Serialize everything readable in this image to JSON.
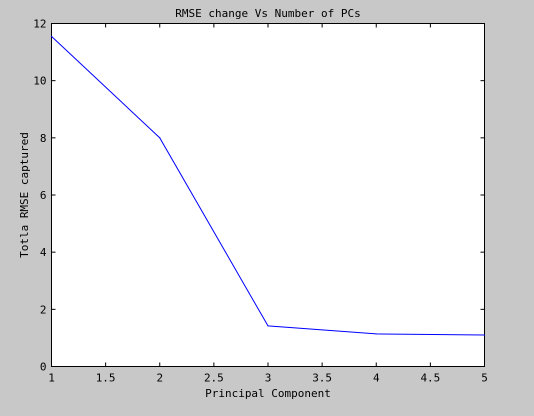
{
  "chart_data": {
    "type": "line",
    "title": "RMSE change Vs Number of PCs",
    "xlabel": "Principal Component",
    "ylabel": "Totla RMSE captured",
    "xlim": [
      1,
      5
    ],
    "ylim": [
      0,
      12
    ],
    "x_ticks": [
      "1",
      "1.5",
      "2",
      "2.5",
      "3",
      "3.5",
      "4",
      "4.5",
      "5"
    ],
    "y_ticks": [
      "0",
      "2",
      "4",
      "6",
      "8",
      "10",
      "12"
    ],
    "grid": false,
    "series": [
      {
        "color": "#0000ff",
        "x": [
          1,
          2,
          3,
          4,
          5
        ],
        "y": [
          11.55,
          8.0,
          1.42,
          1.14,
          1.1
        ]
      }
    ]
  }
}
